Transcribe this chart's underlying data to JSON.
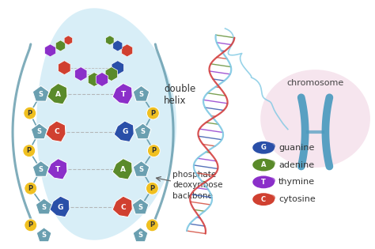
{
  "bg_color": "#ffffff",
  "light_blue_bg": "#c8e8f5",
  "backbone_color": "#6a9fb0",
  "P_color": "#f0c020",
  "S_color": "#6a9fb0",
  "helix_strand1": "#7ec8e3",
  "helix_strand2": "#d44040",
  "helix_strand3": "#5a9a30",
  "helix_rung_colors": [
    "#d44040",
    "#3060a0",
    "#7a30a0",
    "#5a9a30",
    "#d44040",
    "#3060a0"
  ],
  "chrom_color": "#4a9abf",
  "chrom_bg": "#f0d0e0",
  "legend": [
    {
      "letter": "G",
      "label": "guanine",
      "color": "#2a4fa8"
    },
    {
      "letter": "A",
      "label": "adenine",
      "color": "#5a8a2a"
    },
    {
      "letter": "T",
      "label": "thymine",
      "color": "#8b2fc9"
    },
    {
      "letter": "C",
      "label": "cytosine",
      "color": "#d04030"
    }
  ],
  "rungs": [
    {
      "left": "G",
      "right": "C",
      "lc": "#2a4fa8",
      "rc": "#d04030"
    },
    {
      "left": "T",
      "right": "A",
      "lc": "#8b2fc9",
      "rc": "#5a8a2a"
    },
    {
      "left": "C",
      "right": "G",
      "lc": "#d04030",
      "rc": "#2a4fa8"
    },
    {
      "left": "A",
      "right": "T",
      "lc": "#5a8a2a",
      "rc": "#8b2fc9"
    }
  ],
  "top_rungs": [
    {
      "lc": "#d04030",
      "rc": "#2a4fa8"
    },
    {
      "lc": "#8b2fc9",
      "rc": "#5a8a2a"
    },
    {
      "lc": "#5a8a2a",
      "rc": "#8b2fc9"
    },
    {
      "lc": "#d04030",
      "rc": "#2a4fa8"
    }
  ]
}
